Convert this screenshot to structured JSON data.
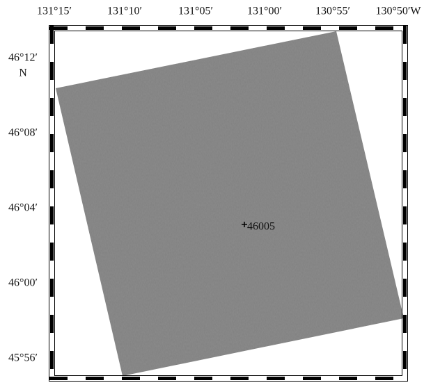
{
  "map": {
    "lon_labels": [
      "131°15′",
      "131°10′",
      "131°05′",
      "131°00′",
      "130°55′",
      "130°50′W"
    ],
    "lat_labels": [
      "46°12′",
      "46°08′",
      "46°04′",
      "46°00′",
      "45°56′"
    ],
    "lat_unit": "N",
    "markers": [
      {
        "label": "46005"
      }
    ]
  }
}
